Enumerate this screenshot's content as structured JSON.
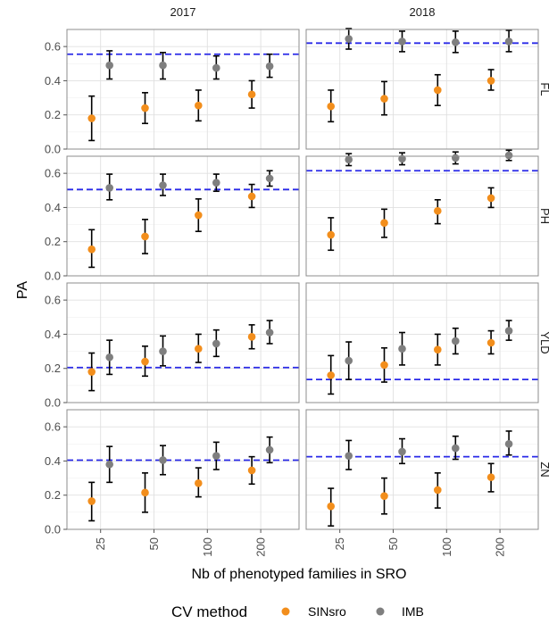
{
  "chart_data": {
    "type": "scatter",
    "subtype": "point-with-errorbars, faceted grid",
    "xlabel": "Nb of phenotyped families in SRO",
    "ylabel": "PA",
    "x_ticks": [
      "25",
      "50",
      "100",
      "200"
    ],
    "y_ticks": [
      "0.0",
      "0.2",
      "0.4",
      "0.6"
    ],
    "ylim": [
      0,
      0.7
    ],
    "grid": true,
    "legend": {
      "title": "CV method",
      "position": "bottom",
      "items": [
        {
          "label": "SINsro",
          "color": "#f28e1c"
        },
        {
          "label": "IMB",
          "color": "#7f7f7f"
        }
      ]
    },
    "columns": [
      "2017",
      "2018"
    ],
    "rows": [
      "FL",
      "PH",
      "YLD",
      "ZN"
    ],
    "colors": {
      "SINsro": "#f28e1c",
      "IMB": "#7f7f7f",
      "reference_line": "#2a2ae8",
      "errorbar": "#000000"
    },
    "panels": [
      {
        "year": "2017",
        "trait": "FL",
        "reference": 0.555,
        "series": [
          {
            "name": "SINsro",
            "values": [
              0.18,
              0.24,
              0.255,
              0.32
            ],
            "lower": [
              0.05,
              0.15,
              0.165,
              0.24
            ],
            "upper": [
              0.31,
              0.33,
              0.345,
              0.4
            ]
          },
          {
            "name": "IMB",
            "values": [
              0.49,
              0.49,
              0.475,
              0.485
            ],
            "lower": [
              0.41,
              0.41,
              0.41,
              0.42
            ],
            "upper": [
              0.575,
              0.565,
              0.545,
              0.555
            ]
          }
        ]
      },
      {
        "year": "2018",
        "trait": "FL",
        "reference": 0.62,
        "series": [
          {
            "name": "SINsro",
            "values": [
              0.25,
              0.295,
              0.345,
              0.4
            ],
            "lower": [
              0.16,
              0.2,
              0.255,
              0.345
            ],
            "upper": [
              0.345,
              0.395,
              0.435,
              0.465
            ]
          },
          {
            "name": "IMB",
            "values": [
              0.645,
              0.63,
              0.625,
              0.63
            ],
            "lower": [
              0.585,
              0.57,
              0.565,
              0.57
            ],
            "upper": [
              0.705,
              0.69,
              0.69,
              0.695
            ]
          }
        ]
      },
      {
        "year": "2017",
        "trait": "PH",
        "reference": 0.505,
        "series": [
          {
            "name": "SINsro",
            "values": [
              0.155,
              0.23,
              0.355,
              0.465
            ],
            "lower": [
              0.05,
              0.13,
              0.26,
              0.4
            ],
            "upper": [
              0.27,
              0.33,
              0.45,
              0.535
            ]
          },
          {
            "name": "IMB",
            "values": [
              0.515,
              0.53,
              0.545,
              0.57
            ],
            "lower": [
              0.445,
              0.47,
              0.495,
              0.525
            ],
            "upper": [
              0.595,
              0.595,
              0.595,
              0.615
            ]
          }
        ]
      },
      {
        "year": "2018",
        "trait": "PH",
        "reference": 0.615,
        "series": [
          {
            "name": "SINsro",
            "values": [
              0.24,
              0.31,
              0.38,
              0.455
            ],
            "lower": [
              0.15,
              0.225,
              0.305,
              0.4
            ],
            "upper": [
              0.34,
              0.39,
              0.445,
              0.515
            ]
          },
          {
            "name": "IMB",
            "values": [
              0.68,
              0.685,
              0.69,
              0.705
            ],
            "lower": [
              0.645,
              0.65,
              0.655,
              0.675
            ],
            "upper": [
              0.715,
              0.72,
              0.725,
              0.735
            ]
          }
        ]
      },
      {
        "year": "2017",
        "trait": "YLD",
        "reference": 0.205,
        "series": [
          {
            "name": "SINsro",
            "values": [
              0.18,
              0.24,
              0.315,
              0.385
            ],
            "lower": [
              0.07,
              0.155,
              0.235,
              0.315
            ],
            "upper": [
              0.29,
              0.33,
              0.4,
              0.455
            ]
          },
          {
            "name": "IMB",
            "values": [
              0.265,
              0.3,
              0.345,
              0.41
            ],
            "lower": [
              0.165,
              0.215,
              0.27,
              0.345
            ],
            "upper": [
              0.365,
              0.39,
              0.425,
              0.48
            ]
          }
        ]
      },
      {
        "year": "2018",
        "trait": "YLD",
        "reference": 0.135,
        "series": [
          {
            "name": "SINsro",
            "values": [
              0.16,
              0.22,
              0.31,
              0.35
            ],
            "lower": [
              0.05,
              0.12,
              0.22,
              0.285
            ],
            "upper": [
              0.275,
              0.32,
              0.4,
              0.42
            ]
          },
          {
            "name": "IMB",
            "values": [
              0.245,
              0.315,
              0.36,
              0.42
            ],
            "lower": [
              0.135,
              0.22,
              0.285,
              0.365
            ],
            "upper": [
              0.355,
              0.41,
              0.435,
              0.48
            ]
          }
        ]
      },
      {
        "year": "2017",
        "trait": "ZN",
        "reference": 0.405,
        "series": [
          {
            "name": "SINsro",
            "values": [
              0.165,
              0.215,
              0.27,
              0.345
            ],
            "lower": [
              0.05,
              0.1,
              0.19,
              0.265
            ],
            "upper": [
              0.275,
              0.33,
              0.36,
              0.425
            ]
          },
          {
            "name": "IMB",
            "values": [
              0.38,
              0.405,
              0.43,
              0.465
            ],
            "lower": [
              0.275,
              0.32,
              0.35,
              0.39
            ],
            "upper": [
              0.485,
              0.49,
              0.51,
              0.54
            ]
          }
        ]
      },
      {
        "year": "2018",
        "trait": "ZN",
        "reference": 0.425,
        "series": [
          {
            "name": "SINsro",
            "values": [
              0.135,
              0.195,
              0.23,
              0.305
            ],
            "lower": [
              0.02,
              0.09,
              0.125,
              0.22
            ],
            "upper": [
              0.24,
              0.3,
              0.33,
              0.385
            ]
          },
          {
            "name": "IMB",
            "values": [
              0.43,
              0.455,
              0.475,
              0.5
            ],
            "lower": [
              0.35,
              0.385,
              0.41,
              0.435
            ],
            "upper": [
              0.52,
              0.53,
              0.545,
              0.575
            ]
          }
        ]
      }
    ]
  }
}
